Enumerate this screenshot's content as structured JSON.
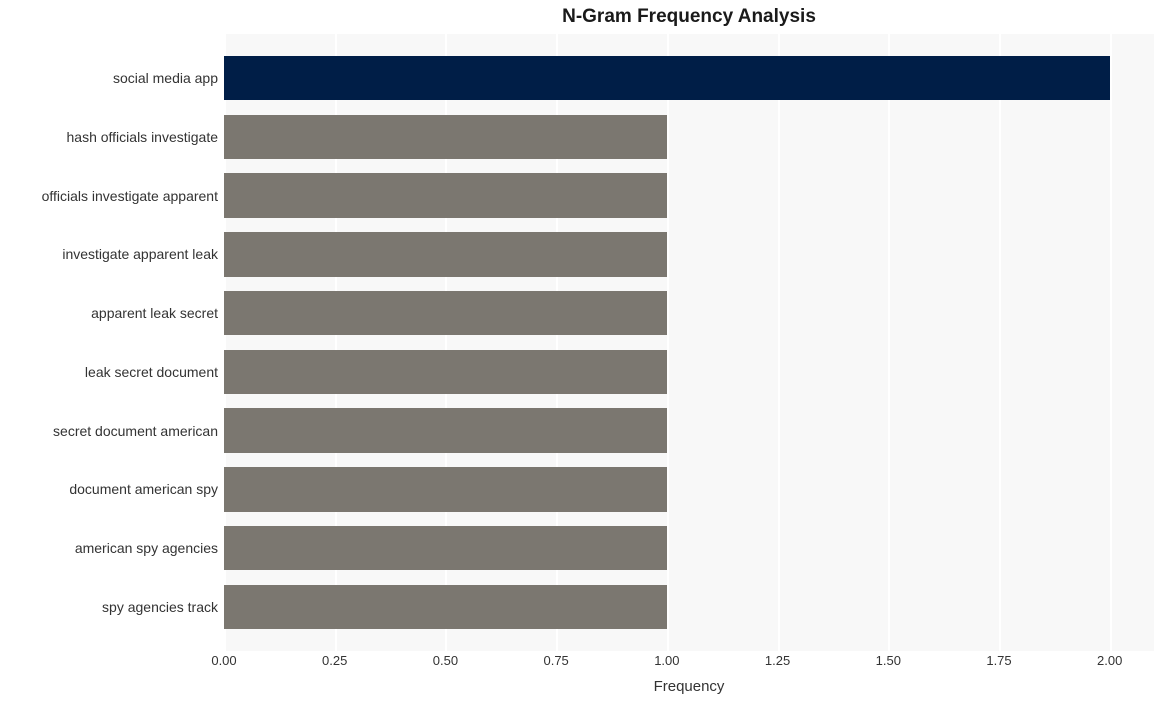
{
  "chart": {
    "type": "bar-horizontal",
    "title": "N-Gram Frequency Analysis",
    "title_fontsize": 19,
    "title_fontweight": "bold",
    "xlabel": "Frequency",
    "xlabel_fontsize": 15,
    "ylabel_fontsize": 14,
    "xtick_fontsize": 13,
    "background_color": "#ffffff",
    "panel_color": "#f8f8f8",
    "grid_color": "#ffffff",
    "xlim": [
      0,
      2.1
    ],
    "x_ticks": [
      0.0,
      0.25,
      0.5,
      0.75,
      1.0,
      1.25,
      1.5,
      1.75,
      2.0
    ],
    "x_tick_labels": [
      "0.00",
      "0.25",
      "0.50",
      "0.75",
      "1.00",
      "1.25",
      "1.50",
      "1.75",
      "2.00"
    ],
    "bar_relative_height": 0.76,
    "categories": [
      "social media app",
      "hash officials investigate",
      "officials investigate apparent",
      "investigate apparent leak",
      "apparent leak secret",
      "leak secret document",
      "secret document american",
      "document american spy",
      "american spy agencies",
      "spy agencies track"
    ],
    "values": [
      2,
      1,
      1,
      1,
      1,
      1,
      1,
      1,
      1,
      1
    ],
    "bar_colors": [
      "#001e47",
      "#7b7770",
      "#7b7770",
      "#7b7770",
      "#7b7770",
      "#7b7770",
      "#7b7770",
      "#7b7770",
      "#7b7770",
      "#7b7770"
    ]
  }
}
